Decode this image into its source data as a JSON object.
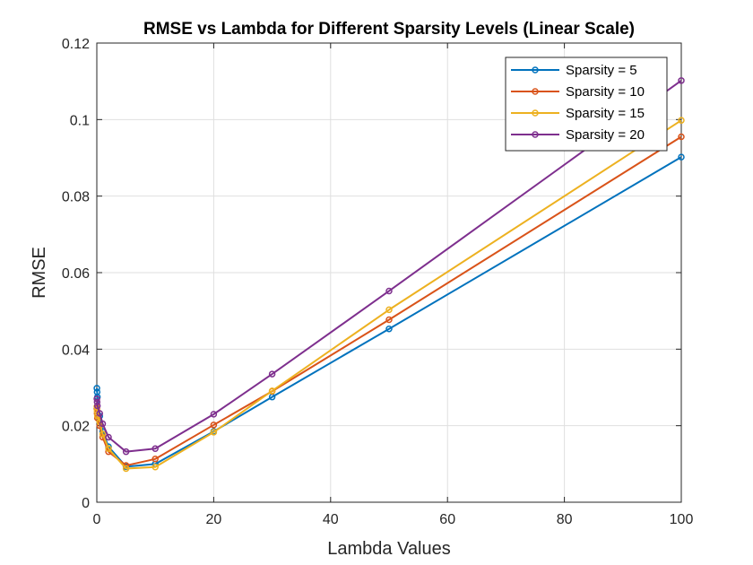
{
  "chart_data": {
    "type": "line",
    "title": "RMSE vs Lambda for Different Sparsity Levels (Linear Scale)",
    "xlabel": "Lambda Values",
    "ylabel": "RMSE",
    "xlim": [
      0,
      100
    ],
    "ylim": [
      0,
      0.12
    ],
    "xticks": [
      0,
      20,
      40,
      60,
      80,
      100
    ],
    "xtick_labels": [
      "0",
      "20",
      "40",
      "60",
      "80",
      "100"
    ],
    "yticks": [
      0,
      0.02,
      0.04,
      0.06,
      0.08,
      0.1,
      0.12
    ],
    "ytick_labels": [
      "0",
      "0.02",
      "0.04",
      "0.06",
      "0.08",
      "0.1",
      "0.12"
    ],
    "grid": true,
    "legend_position": "top-right",
    "x": [
      0.01,
      0.05,
      0.1,
      0.5,
      1,
      2,
      5,
      10,
      20,
      30,
      50,
      100
    ],
    "series": [
      {
        "name": "Sparsity = 5",
        "color": "#0072BD",
        "values": [
          0.0298,
          0.0288,
          0.0275,
          0.0225,
          0.0185,
          0.0145,
          0.0093,
          0.01,
          0.0185,
          0.0275,
          0.0453,
          0.0902
        ]
      },
      {
        "name": "Sparsity = 10",
        "color": "#D95319",
        "values": [
          0.0245,
          0.0232,
          0.022,
          0.02,
          0.017,
          0.0132,
          0.0096,
          0.0113,
          0.0202,
          0.029,
          0.0477,
          0.0955
        ]
      },
      {
        "name": "Sparsity = 15",
        "color": "#EDB120",
        "values": [
          0.025,
          0.0238,
          0.0226,
          0.021,
          0.0178,
          0.014,
          0.0088,
          0.0092,
          0.0183,
          0.0291,
          0.0503,
          0.0998
        ]
      },
      {
        "name": "Sparsity = 20",
        "color": "#7E2F8E",
        "values": [
          0.027,
          0.0262,
          0.0252,
          0.0232,
          0.0205,
          0.017,
          0.0132,
          0.014,
          0.023,
          0.0335,
          0.0552,
          0.1102
        ]
      }
    ]
  }
}
